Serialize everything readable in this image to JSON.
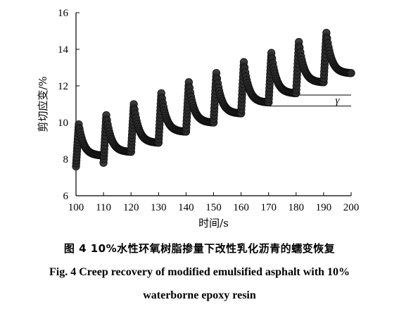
{
  "chart_data": {
    "type": "scatter",
    "xlabel": "时间/s",
    "ylabel": "剪切应变/%",
    "xlim": [
      100,
      200
    ],
    "ylim": [
      6,
      16
    ],
    "x_ticks": [
      100,
      110,
      120,
      130,
      140,
      150,
      160,
      170,
      180,
      190,
      200
    ],
    "y_ticks": [
      6,
      8,
      10,
      12,
      14,
      16
    ],
    "grid": false,
    "legend": "none",
    "marker_color": "#2b2b2b",
    "cycles": [
      {
        "start": 100,
        "min": 7.6,
        "peak": 9.9,
        "end": 8.2
      },
      {
        "start": 110,
        "min": 7.8,
        "peak": 10.4,
        "end": 8.4
      },
      {
        "start": 120,
        "min": 8.4,
        "peak": 11.0,
        "end": 8.9
      },
      {
        "start": 130,
        "min": 8.9,
        "peak": 11.6,
        "end": 9.5
      },
      {
        "start": 140,
        "min": 9.5,
        "peak": 12.2,
        "end": 10.0
      },
      {
        "start": 150,
        "min": 10.0,
        "peak": 12.7,
        "end": 10.5
      },
      {
        "start": 160,
        "min": 10.5,
        "peak": 13.3,
        "end": 11.1
      },
      {
        "start": 170,
        "min": 11.1,
        "peak": 13.8,
        "end": 11.6
      },
      {
        "start": 180,
        "min": 11.6,
        "peak": 14.4,
        "end": 12.2
      },
      {
        "start": 190,
        "min": 12.2,
        "peak": 14.9,
        "end": 12.7
      }
    ],
    "annotation": {
      "label": "γ",
      "upper_level": 11.5,
      "lower_level": 10.9,
      "x_from_upper": 180,
      "x_from_lower": 170,
      "x_to": 200
    }
  },
  "caption": {
    "cn": "图 4   10%水性环氧树脂掺量下改性乳化沥青的蠕变恢复",
    "en_line1": "Fig. 4   Creep recovery of modified emulsified asphalt with 10%",
    "en_line2": "waterborne epoxy resin"
  }
}
